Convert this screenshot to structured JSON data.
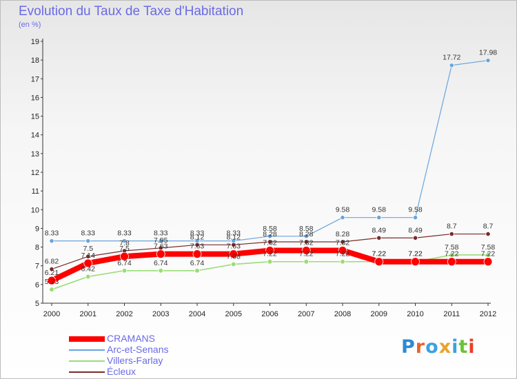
{
  "title": "Evolution du Taux de Taxe d'Habitation",
  "unit": "(en %)",
  "brand": {
    "text": "Proxiti",
    "colors": [
      "#2a8ad6",
      "#e8652a",
      "#3aa3de",
      "#e8a42a",
      "#3aa3de",
      "#6bc23a",
      "#e8402a"
    ]
  },
  "chart_data": {
    "type": "line",
    "x": [
      "2000",
      "2001",
      "2002",
      "2003",
      "2004",
      "2005",
      "2006",
      "2007",
      "2008",
      "2009",
      "2010",
      "2011",
      "2012"
    ],
    "ylim": [
      5,
      19
    ],
    "yticks": [
      5,
      6,
      7,
      8,
      9,
      10,
      11,
      12,
      13,
      14,
      15,
      16,
      17,
      18,
      19
    ],
    "grid": false,
    "legend": "bottom-left",
    "series": [
      {
        "name": "Arc-et-Senans",
        "color": "#6aa4dc",
        "width": 1.2,
        "marker": 3.2,
        "values": [
          8.33,
          8.33,
          8.33,
          8.33,
          8.33,
          8.33,
          8.58,
          8.58,
          9.58,
          9.58,
          9.58,
          17.72,
          17.98
        ],
        "labels": [
          "8.33",
          "8.33",
          "8.33",
          "8.33",
          "8.33",
          "8.33",
          "8.58",
          "8.58",
          "9.58",
          "9.58",
          "9.58",
          "17.72",
          "17.98"
        ]
      },
      {
        "name": "Écleux",
        "color": "#7a2a2a",
        "width": 1.2,
        "marker": 3.2,
        "values": [
          6.82,
          7.5,
          7.8,
          7.95,
          8.12,
          8.12,
          8.28,
          8.28,
          8.28,
          8.49,
          8.49,
          8.7,
          8.7
        ],
        "labels": [
          "6.82",
          "7.5",
          "7.8",
          "7.95",
          "8.12",
          "8.12",
          "8.28",
          "8.28",
          "8.28",
          "8.49",
          "8.49",
          "8.7",
          "8.7"
        ]
      },
      {
        "name": "Villers-Farlay",
        "color": "#99dd77",
        "width": 1.6,
        "marker": 3.4,
        "values": [
          5.73,
          6.42,
          6.74,
          6.74,
          6.74,
          7.08,
          7.22,
          7.22,
          7.22,
          7.22,
          7.22,
          7.58,
          7.58
        ],
        "labels": [
          "5.73",
          "6.42",
          "6.74",
          "6.74",
          "6.74",
          "7.08",
          "7.22",
          "7.22",
          "7.22",
          "7.22",
          "7.22",
          "7.58",
          "7.58"
        ]
      },
      {
        "name": "CRAMANS",
        "color": "#ff0000",
        "width": 8,
        "marker": 6,
        "values": [
          6.21,
          7.14,
          7.5,
          7.63,
          7.63,
          7.63,
          7.82,
          7.82,
          7.82,
          7.22,
          7.22,
          7.22,
          7.22
        ],
        "labels": [
          "6.21",
          "7.14",
          "7.5",
          "7.63",
          "7.63",
          "7.63",
          "7.82",
          "7.82",
          "7.82",
          "7.22",
          "7.22",
          "7.22",
          "7.22"
        ]
      }
    ],
    "legend_order": [
      "CRAMANS",
      "Arc-et-Senans",
      "Villers-Farlay",
      "Écleux"
    ]
  }
}
